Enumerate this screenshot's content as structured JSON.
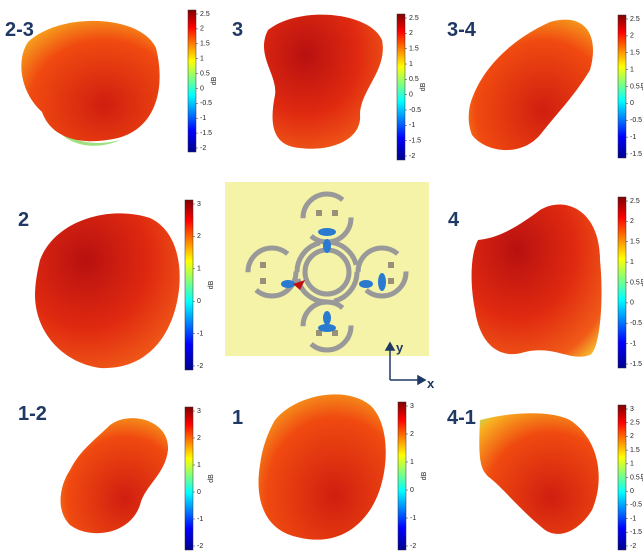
{
  "panels": [
    {
      "label": "2-3",
      "colorbar": {
        "ticks": [
          2.5,
          2,
          1.5,
          1,
          0.5,
          0,
          -0.5,
          -1,
          -1.5,
          -2
        ],
        "unit": "dB"
      }
    },
    {
      "label": "3",
      "colorbar": {
        "ticks": [
          2.5,
          2,
          1.5,
          1,
          0.5,
          0,
          -0.5,
          -1,
          -1.5,
          -2
        ],
        "unit": "dB"
      }
    },
    {
      "label": "3-4",
      "colorbar": {
        "ticks": [
          2.5,
          2,
          1.5,
          1,
          0.5,
          0,
          -0.5,
          -1,
          -1.5
        ],
        "unit": "dB"
      }
    },
    {
      "label": "2",
      "colorbar": {
        "ticks": [
          3,
          2,
          1,
          0,
          -1,
          -2
        ],
        "unit": "dB"
      }
    },
    {
      "label": "4",
      "colorbar": {
        "ticks": [
          2.5,
          2,
          1.5,
          1,
          0.5,
          0,
          -0.5,
          -1,
          -1.5
        ],
        "unit": "dB"
      }
    },
    {
      "label": "1-2",
      "colorbar": {
        "ticks": [
          3,
          2,
          1,
          0,
          -1,
          -2
        ],
        "unit": "dB"
      }
    },
    {
      "label": "1",
      "colorbar": {
        "ticks": [
          3,
          2,
          1,
          0,
          -1,
          -2
        ],
        "unit": "dB"
      }
    },
    {
      "label": "4-1",
      "colorbar": {
        "ticks": [
          3,
          2.5,
          2,
          1.5,
          1,
          0.5,
          0,
          -0.5,
          -1,
          -1.5,
          -2
        ],
        "unit": "dB"
      }
    }
  ],
  "diagram": {
    "axis_x": "x",
    "axis_y": "y"
  }
}
